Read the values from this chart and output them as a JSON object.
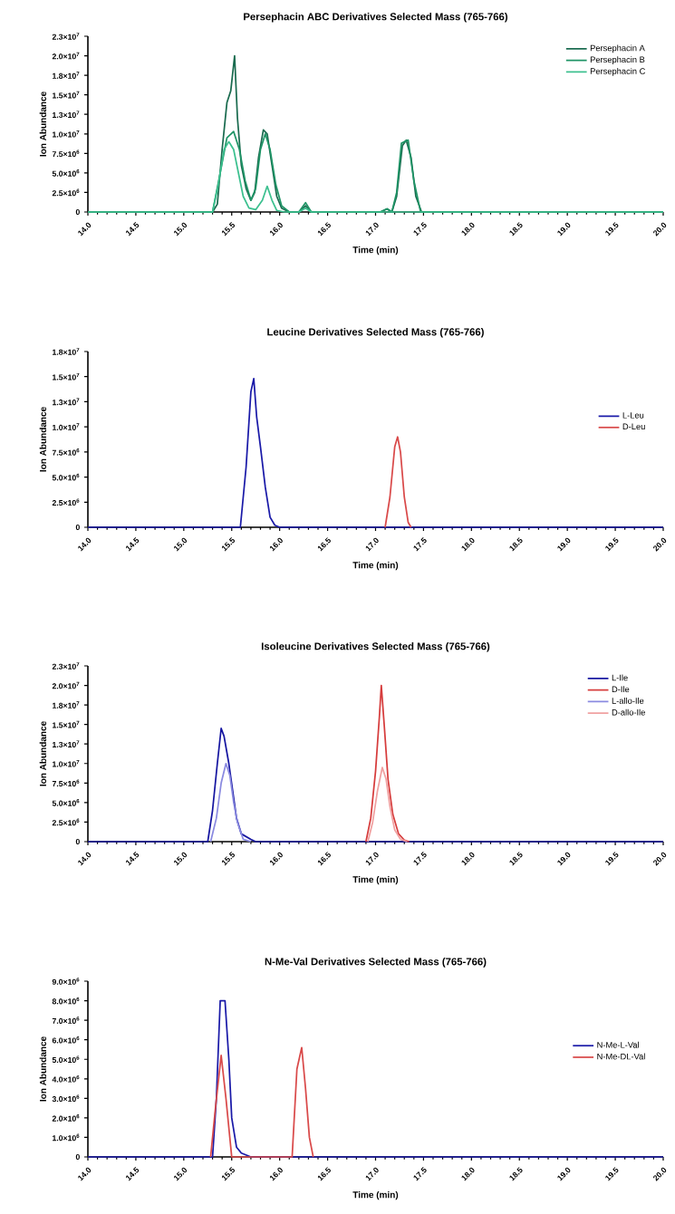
{
  "chart_data": [
    {
      "type": "line",
      "title": "Persephacin ABC Derivatives Selected Mass (765-766)",
      "xlabel": "Time (min)",
      "ylabel": "Ion Abundance",
      "legend": "top right",
      "xlim": [
        14,
        20
      ],
      "xticks": [
        {
          "value": 14,
          "label": "14.0"
        },
        {
          "value": 14.5,
          "label": "14.5"
        },
        {
          "value": 15,
          "label": "15.0"
        },
        {
          "value": 15.5,
          "label": "15.5"
        },
        {
          "value": 16,
          "label": "16.0"
        },
        {
          "value": 16.5,
          "label": "16.5"
        },
        {
          "value": 17,
          "label": "17.0"
        },
        {
          "value": 17.5,
          "label": "17.5"
        },
        {
          "value": 18,
          "label": "18.0"
        },
        {
          "value": 18.5,
          "label": "18.5"
        },
        {
          "value": 19,
          "label": "19.0"
        },
        {
          "value": 19.5,
          "label": "19.5"
        },
        {
          "value": 20,
          "label": "20.0"
        }
      ],
      "ylim": [
        0,
        22500000
      ],
      "yticks": [
        0,
        {
          "value": 2500000,
          "label": "2.5×10$^{6}$"
        },
        {
          "value": 5000000,
          "label": "5.0×10$^{6}$"
        },
        {
          "value": 7500000,
          "label": "7.5×10$^{6}$"
        },
        {
          "value": 10000000,
          "label": "1.0×10$^{7}$"
        },
        {
          "value": 12500000,
          "label": "1.3×10$^{7}$"
        },
        {
          "value": 15000000,
          "label": "1.5×10$^{7}$"
        },
        {
          "value": 17500000,
          "label": "1.8×10$^{7}$"
        },
        {
          "value": 20000000,
          "label": "2.0×10$^{7}$"
        },
        {
          "value": 22500000,
          "label": "2.3×10$^{7}$"
        }
      ],
      "series": [
        {
          "name": "Persephacin A",
          "color": "#1a6b4f",
          "x": [
            14,
            15.3,
            15.35,
            15.4,
            15.45,
            15.49,
            15.53,
            15.56,
            15.6,
            15.65,
            15.7,
            15.74,
            15.78,
            15.83,
            15.87,
            15.92,
            15.97,
            16.02,
            16.1,
            16.2,
            16.27,
            16.33,
            17.05,
            17.12,
            17.17,
            17.22,
            17.28,
            17.32,
            17.37,
            17.42,
            17.48,
            20
          ],
          "values": [
            0,
            0,
            1000000,
            8000000,
            14000000,
            15500000,
            20000000,
            12000000,
            6000000,
            3000000,
            1500000,
            2500000,
            7000000,
            10500000,
            10000000,
            6000000,
            2000000,
            500000,
            0,
            0,
            800000,
            0,
            0,
            400000,
            0,
            2000000,
            8500000,
            9200000,
            7000000,
            2000000,
            0,
            0
          ]
        },
        {
          "name": "Persephacin B",
          "color": "#1f9466",
          "x": [
            14,
            15.3,
            15.38,
            15.45,
            15.52,
            15.58,
            15.64,
            15.7,
            15.75,
            15.8,
            15.85,
            15.9,
            15.96,
            16.02,
            16.1,
            16.2,
            16.27,
            16.33,
            17.05,
            17.12,
            17.17,
            17.22,
            17.27,
            17.3,
            17.34,
            17.4,
            17.47,
            20
          ],
          "values": [
            0,
            0,
            5000000,
            9500000,
            10300000,
            8000000,
            4000000,
            1500000,
            3000000,
            8000000,
            10000000,
            8000000,
            3500000,
            800000,
            0,
            0,
            1200000,
            0,
            0,
            400000,
            0,
            2500000,
            8800000,
            9000000,
            9200000,
            4000000,
            0,
            0
          ]
        },
        {
          "name": "Persephacin C",
          "color": "#3cc08f",
          "x": [
            14,
            15.3,
            15.36,
            15.42,
            15.47,
            15.52,
            15.57,
            15.62,
            15.68,
            15.75,
            15.82,
            15.87,
            15.92,
            15.97,
            16.05,
            16.2,
            16.27,
            16.33,
            20
          ],
          "values": [
            0,
            0,
            3500000,
            8000000,
            9000000,
            8000000,
            5000000,
            2000000,
            500000,
            300000,
            1500000,
            3300000,
            1500000,
            200000,
            0,
            0,
            500000,
            0,
            0
          ]
        }
      ]
    },
    {
      "type": "line",
      "title": "Leucine Derivatives Selected Mass (765-766)",
      "xlabel": "Time (min)",
      "ylabel": "Ion Abundance",
      "legend": "right",
      "xlim": [
        14,
        20
      ],
      "xticks": [
        {
          "value": 14,
          "label": "14.0"
        },
        {
          "value": 14.5,
          "label": "14.5"
        },
        {
          "value": 15,
          "label": "15.0"
        },
        {
          "value": 15.5,
          "label": "15.5"
        },
        {
          "value": 16,
          "label": "16.0"
        },
        {
          "value": 16.5,
          "label": "16.5"
        },
        {
          "value": 17,
          "label": "17.0"
        },
        {
          "value": 17.5,
          "label": "17.5"
        },
        {
          "value": 18,
          "label": "18.0"
        },
        {
          "value": 18.5,
          "label": "18.5"
        },
        {
          "value": 19,
          "label": "19.0"
        },
        {
          "value": 19.5,
          "label": "19.5"
        },
        {
          "value": 20,
          "label": "20.0"
        }
      ],
      "ylim": [
        0,
        17500000
      ],
      "yticks": [
        0,
        {
          "value": 2500000,
          "label": "2.5×10$^{6}$"
        },
        {
          "value": 5000000,
          "label": "5.0×10$^{6}$"
        },
        {
          "value": 7500000,
          "label": "7.5×10$^{6}$"
        },
        {
          "value": 10000000,
          "label": "1.0×10$^{7}$"
        },
        {
          "value": 12500000,
          "label": "1.3×10$^{7}$"
        },
        {
          "value": 15000000,
          "label": "1.5×10$^{7}$"
        },
        {
          "value": 17500000,
          "label": "1.8×10$^{7}$"
        }
      ],
      "series": [
        {
          "name": "L-Leu",
          "color": "#1a1aa8",
          "x": [
            14,
            15.59,
            15.65,
            15.7,
            15.73,
            15.76,
            15.8,
            15.85,
            15.9,
            15.95,
            16,
            20
          ],
          "values": [
            0,
            0,
            6000000,
            13500000,
            14800000,
            11000000,
            8000000,
            4000000,
            1000000,
            200000,
            0,
            0
          ]
        },
        {
          "name": "D-Leu",
          "color": "#d94a4a",
          "x": [
            17.1,
            17.15,
            17.2,
            17.23,
            17.26,
            17.3,
            17.34,
            17.37
          ],
          "values": [
            0,
            3000000,
            8000000,
            9000000,
            7500000,
            3000000,
            500000,
            0
          ]
        }
      ]
    },
    {
      "type": "line",
      "title": "Isoleucine Derivatives Selected Mass (765-766)",
      "xlabel": "Time (min)",
      "ylabel": "Ion Abundance",
      "legend": "top right",
      "xlim": [
        14,
        20
      ],
      "xticks": [
        {
          "value": 14,
          "label": "14.0"
        },
        {
          "value": 14.5,
          "label": "14.5"
        },
        {
          "value": 15,
          "label": "15.0"
        },
        {
          "value": 15.5,
          "label": "15.5"
        },
        {
          "value": 16,
          "label": "16.0"
        },
        {
          "value": 16.5,
          "label": "16.5"
        },
        {
          "value": 17,
          "label": "17.0"
        },
        {
          "value": 17.5,
          "label": "17.5"
        },
        {
          "value": 18,
          "label": "18.0"
        },
        {
          "value": 18.5,
          "label": "18.5"
        },
        {
          "value": 19,
          "label": "19.0"
        },
        {
          "value": 19.5,
          "label": "19.5"
        },
        {
          "value": 20,
          "label": "20.0"
        }
      ],
      "ylim": [
        0,
        22500000
      ],
      "yticks": [
        0,
        {
          "value": 2500000,
          "label": "2.5×10$^{6}$"
        },
        {
          "value": 5000000,
          "label": "5.0×10$^{6}$"
        },
        {
          "value": 7500000,
          "label": "7.5×10$^{6}$"
        },
        {
          "value": 10000000,
          "label": "1.0×10$^{7}$"
        },
        {
          "value": 12500000,
          "label": "1.3×10$^{7}$"
        },
        {
          "value": 15000000,
          "label": "1.5×10$^{7}$"
        },
        {
          "value": 17500000,
          "label": "1.8×10$^{7}$"
        },
        {
          "value": 20000000,
          "label": "2.0×10$^{7}$"
        },
        {
          "value": 22500000,
          "label": "2.3×10$^{7}$"
        }
      ],
      "series": [
        {
          "name": "L-Ile",
          "color": "#1515a0",
          "x": [
            14,
            15.25,
            15.3,
            15.35,
            15.39,
            15.42,
            15.47,
            15.51,
            15.55,
            15.6,
            15.7,
            15.75,
            20
          ],
          "values": [
            0,
            0,
            4000000,
            10000000,
            14500000,
            13500000,
            10000000,
            6500000,
            3000000,
            1000000,
            300000,
            0,
            0
          ]
        },
        {
          "name": "D-Ile",
          "color": "#d63c3c",
          "x": [
            16.9,
            16.95,
            17.0,
            17.04,
            17.06,
            17.09,
            17.13,
            17.18,
            17.24,
            17.3,
            17.35
          ],
          "values": [
            0,
            3000000,
            9000000,
            16000000,
            20000000,
            15000000,
            8000000,
            3500000,
            1000000,
            200000,
            0
          ]
        },
        {
          "name": "L-allo-Ile",
          "color": "#8a8ae0",
          "x": [
            15.28,
            15.34,
            15.39,
            15.44,
            15.48,
            15.52,
            15.56,
            15.62,
            15.7
          ],
          "values": [
            0,
            3000000,
            7500000,
            10000000,
            8500000,
            5000000,
            2500000,
            300000,
            0
          ]
        },
        {
          "name": "D-allo-Ile",
          "color": "#f0a0a0",
          "x": [
            16.92,
            16.97,
            17.02,
            17.07,
            17.11,
            17.15,
            17.2,
            17.26,
            17.33
          ],
          "values": [
            0,
            2500000,
            6500000,
            9500000,
            8000000,
            4500000,
            1500000,
            300000,
            0
          ]
        }
      ]
    },
    {
      "type": "line",
      "title": "N-Me-Val Derivatives  Selected Mass (765-766)",
      "xlabel": "Time (min)",
      "ylabel": "Ion Abundance",
      "legend": "right",
      "xlim": [
        14,
        20
      ],
      "xticks": [
        {
          "value": 14,
          "label": "14.0"
        },
        {
          "value": 14.5,
          "label": "14.5"
        },
        {
          "value": 15,
          "label": "15.0"
        },
        {
          "value": 15.5,
          "label": "15.5"
        },
        {
          "value": 16,
          "label": "16.0"
        },
        {
          "value": 16.5,
          "label": "16.5"
        },
        {
          "value": 17,
          "label": "17.0"
        },
        {
          "value": 17.5,
          "label": "17.5"
        },
        {
          "value": 18,
          "label": "18.0"
        },
        {
          "value": 18.5,
          "label": "18.5"
        },
        {
          "value": 19,
          "label": "19.0"
        },
        {
          "value": 19.5,
          "label": "19.5"
        },
        {
          "value": 20,
          "label": "20.0"
        }
      ],
      "ylim": [
        0,
        9000000
      ],
      "yticks": [
        0,
        {
          "value": 1000000,
          "label": "1.0×10$^{6}$"
        },
        {
          "value": 2000000,
          "label": "2.0×10$^{6}$"
        },
        {
          "value": 3000000,
          "label": "3.0×10$^{6}$"
        },
        {
          "value": 4000000,
          "label": "4.0×10$^{6}$"
        },
        {
          "value": 5000000,
          "label": "5.0×10$^{6}$"
        },
        {
          "value": 6000000,
          "label": "6.0×10$^{6}$"
        },
        {
          "value": 7000000,
          "label": "7.0×10$^{6}$"
        },
        {
          "value": 8000000,
          "label": "8.0×10$^{6}$"
        },
        {
          "value": 9000000,
          "label": "9.0×10$^{6}$"
        }
      ],
      "series": [
        {
          "name": "N-Me-L-Val",
          "color": "#1a1aa8",
          "x": [
            14,
            15.3,
            15.34,
            15.38,
            15.43,
            15.47,
            15.5,
            15.55,
            15.6,
            15.7,
            20
          ],
          "values": [
            0,
            0,
            3000000,
            8000000,
            8000000,
            5000000,
            2000000,
            500000,
            200000,
            0,
            0
          ]
        },
        {
          "name": "N-Me-DL-Val",
          "color": "#d94a4a",
          "x": [
            15.28,
            15.33,
            15.39,
            15.44,
            15.5,
            16.13,
            16.18,
            16.23,
            16.27,
            16.31,
            16.35
          ],
          "values": [
            0,
            2500000,
            5200000,
            3000000,
            0,
            0,
            4500000,
            5600000,
            3500000,
            1000000,
            0
          ]
        }
      ]
    }
  ]
}
